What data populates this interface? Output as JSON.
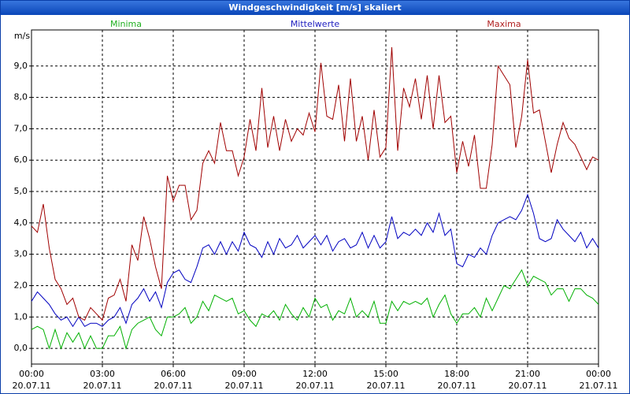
{
  "window_title": "Windgeschwindigkeit [m/s] skaliert",
  "chart_data": {
    "type": "line",
    "y_unit": "m/s",
    "x": [
      0,
      0.25,
      0.5,
      0.75,
      1,
      1.25,
      1.5,
      1.75,
      2,
      2.25,
      2.5,
      2.75,
      3,
      3.25,
      3.5,
      3.75,
      4,
      4.25,
      4.5,
      4.75,
      5,
      5.25,
      5.5,
      5.75,
      6,
      6.25,
      6.5,
      6.75,
      7,
      7.25,
      7.5,
      7.75,
      8,
      8.25,
      8.5,
      8.75,
      9,
      9.25,
      9.5,
      9.75,
      10,
      10.25,
      10.5,
      10.75,
      11,
      11.25,
      11.5,
      11.75,
      12,
      12.25,
      12.5,
      12.75,
      13,
      13.25,
      13.5,
      13.75,
      14,
      14.25,
      14.5,
      14.75,
      15,
      15.25,
      15.5,
      15.75,
      16,
      16.25,
      16.5,
      16.75,
      17,
      17.25,
      17.5,
      17.75,
      18,
      18.25,
      18.5,
      18.75,
      19,
      19.25,
      19.5,
      19.75,
      20,
      20.25,
      20.5,
      20.75,
      21,
      21.25,
      21.5,
      21.75,
      22,
      22.25,
      22.5,
      22.75,
      23,
      23.25,
      23.5,
      23.75,
      24
    ],
    "series": [
      {
        "name": "Minima",
        "color": "#00b000",
        "values": [
          0.6,
          0.7,
          0.6,
          0.0,
          0.6,
          0.0,
          0.5,
          0.2,
          0.5,
          0.0,
          0.4,
          0.0,
          0.0,
          0.4,
          0.4,
          0.7,
          0.0,
          0.6,
          0.8,
          0.9,
          1.0,
          0.6,
          0.4,
          1.0,
          1.0,
          1.1,
          1.3,
          0.8,
          1.0,
          1.5,
          1.2,
          1.7,
          1.6,
          1.5,
          1.6,
          1.1,
          1.2,
          0.9,
          0.7,
          1.1,
          1.0,
          1.2,
          0.9,
          1.4,
          1.1,
          0.9,
          1.3,
          1.0,
          1.6,
          1.3,
          1.4,
          0.9,
          1.2,
          1.1,
          1.6,
          1.0,
          1.2,
          1.0,
          1.5,
          0.8,
          0.8,
          1.5,
          1.2,
          1.5,
          1.4,
          1.5,
          1.4,
          1.6,
          1.0,
          1.4,
          1.7,
          1.1,
          0.8,
          1.1,
          1.1,
          1.3,
          1.0,
          1.6,
          1.2,
          1.6,
          2.0,
          1.9,
          2.2,
          2.5,
          2.0,
          2.3,
          2.2,
          2.1,
          1.7,
          1.9,
          1.9,
          1.5,
          1.9,
          1.9,
          1.7,
          1.6,
          1.4
        ]
      },
      {
        "name": "Mittelwerte",
        "color": "#0000c0",
        "values": [
          1.5,
          1.8,
          1.6,
          1.4,
          1.1,
          0.9,
          1.0,
          0.7,
          1.0,
          0.7,
          0.8,
          0.8,
          0.7,
          0.9,
          1.0,
          1.3,
          0.8,
          1.4,
          1.6,
          1.9,
          1.5,
          1.8,
          1.3,
          2.1,
          2.4,
          2.5,
          2.2,
          2.1,
          2.6,
          3.2,
          3.3,
          3.0,
          3.4,
          3.0,
          3.4,
          3.1,
          3.7,
          3.3,
          3.2,
          2.9,
          3.4,
          3.0,
          3.5,
          3.2,
          3.3,
          3.6,
          3.2,
          3.4,
          3.6,
          3.3,
          3.6,
          3.1,
          3.4,
          3.5,
          3.2,
          3.3,
          3.7,
          3.2,
          3.6,
          3.2,
          3.4,
          4.2,
          3.5,
          3.7,
          3.6,
          3.8,
          3.6,
          4.0,
          3.7,
          4.3,
          3.6,
          3.8,
          2.7,
          2.6,
          3.0,
          2.9,
          3.2,
          3.0,
          3.6,
          4.0,
          4.1,
          4.2,
          4.1,
          4.4,
          4.9,
          4.3,
          3.5,
          3.4,
          3.5,
          4.1,
          3.8,
          3.6,
          3.4,
          3.7,
          3.2,
          3.5,
          3.2
        ]
      },
      {
        "name": "Maxima",
        "color": "#a00000",
        "values": [
          3.9,
          3.7,
          4.6,
          3.2,
          2.2,
          1.9,
          1.4,
          1.6,
          1.0,
          0.9,
          1.3,
          1.1,
          0.9,
          1.6,
          1.7,
          2.2,
          1.5,
          3.3,
          2.8,
          4.2,
          3.5,
          2.6,
          1.9,
          5.5,
          4.7,
          5.2,
          5.2,
          4.1,
          4.4,
          5.9,
          6.3,
          5.9,
          7.2,
          6.3,
          6.3,
          5.5,
          6.1,
          7.3,
          6.3,
          8.3,
          6.4,
          7.4,
          6.3,
          7.3,
          6.6,
          7.0,
          6.8,
          7.5,
          6.9,
          9.1,
          7.4,
          7.3,
          8.4,
          6.6,
          8.6,
          6.6,
          7.4,
          6.0,
          7.6,
          6.1,
          6.4,
          9.6,
          6.3,
          8.3,
          7.7,
          8.6,
          7.3,
          8.7,
          7.0,
          8.7,
          7.2,
          7.4,
          5.6,
          6.6,
          5.8,
          6.8,
          5.1,
          5.1,
          6.5,
          9.0,
          8.7,
          8.4,
          6.4,
          7.4,
          9.2,
          7.5,
          7.6,
          6.6,
          5.6,
          6.5,
          7.2,
          6.7,
          6.5,
          6.1,
          5.7,
          6.1,
          6.0
        ]
      }
    ],
    "legend_colors": [
      "#20b020",
      "#2020c0",
      "#b02020"
    ],
    "xlim": [
      0,
      24
    ],
    "xticks": [
      {
        "value": 0,
        "label": "00:00"
      },
      {
        "value": 3,
        "label": "03:00"
      },
      {
        "value": 6,
        "label": "06:00"
      },
      {
        "value": 9,
        "label": "09:00"
      },
      {
        "value": 12,
        "label": "12:00"
      },
      {
        "value": 15,
        "label": "15:00"
      },
      {
        "value": 18,
        "label": "18:00"
      },
      {
        "value": 21,
        "label": "21:00"
      },
      {
        "value": 24,
        "label": "00:00"
      }
    ],
    "xtick_dates": [
      "20.07.11",
      "20.07.11",
      "20.07.11",
      "20.07.11",
      "20.07.11",
      "20.07.11",
      "20.07.11",
      "20.07.11",
      "21.07.11"
    ],
    "ylim": [
      -0.5,
      10.15
    ],
    "yticks": [
      {
        "value": 0,
        "label": "0,0"
      },
      {
        "value": 1,
        "label": "1,0"
      },
      {
        "value": 2,
        "label": "2,0"
      },
      {
        "value": 3,
        "label": "3,0"
      },
      {
        "value": 4,
        "label": "4,0"
      },
      {
        "value": 5,
        "label": "5,0"
      },
      {
        "value": 6,
        "label": "6,0"
      },
      {
        "value": 7,
        "label": "7,0"
      },
      {
        "value": 8,
        "label": "8,0"
      },
      {
        "value": 9,
        "label": "9,0"
      }
    ],
    "grid": true
  }
}
